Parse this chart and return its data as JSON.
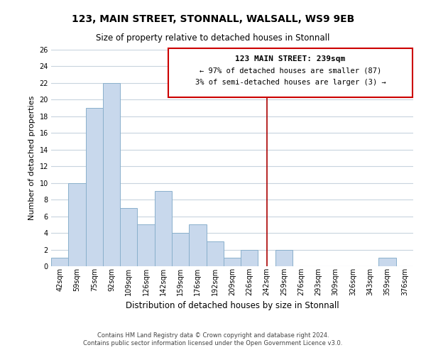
{
  "title": "123, MAIN STREET, STONNALL, WALSALL, WS9 9EB",
  "subtitle": "Size of property relative to detached houses in Stonnall",
  "xlabel": "Distribution of detached houses by size in Stonnall",
  "ylabel": "Number of detached properties",
  "bar_labels": [
    "42sqm",
    "59sqm",
    "75sqm",
    "92sqm",
    "109sqm",
    "126sqm",
    "142sqm",
    "159sqm",
    "176sqm",
    "192sqm",
    "209sqm",
    "226sqm",
    "242sqm",
    "259sqm",
    "276sqm",
    "293sqm",
    "309sqm",
    "326sqm",
    "343sqm",
    "359sqm",
    "376sqm"
  ],
  "bar_values": [
    1,
    10,
    19,
    22,
    7,
    5,
    9,
    4,
    5,
    3,
    1,
    2,
    0,
    2,
    0,
    0,
    0,
    0,
    0,
    1,
    0
  ],
  "bar_color": "#c8d8ec",
  "bar_edgecolor": "#8ab0cc",
  "vline_x_index": 12,
  "vline_color": "#aa0000",
  "annotation_title": "123 MAIN STREET: 239sqm",
  "annotation_line1": "← 97% of detached houses are smaller (87)",
  "annotation_line2": "3% of semi-detached houses are larger (3) →",
  "annotation_box_color": "#ffffff",
  "annotation_box_edgecolor": "#cc0000",
  "ylim": [
    0,
    26
  ],
  "yticks": [
    0,
    2,
    4,
    6,
    8,
    10,
    12,
    14,
    16,
    18,
    20,
    22,
    24,
    26
  ],
  "footer_line1": "Contains HM Land Registry data © Crown copyright and database right 2024.",
  "footer_line2": "Contains public sector information licensed under the Open Government Licence v3.0.",
  "background_color": "#ffffff",
  "grid_color": "#c8d4de",
  "title_fontsize": 10,
  "subtitle_fontsize": 8.5,
  "ylabel_fontsize": 8,
  "xlabel_fontsize": 8.5,
  "tick_fontsize": 7,
  "footer_fontsize": 6,
  "annot_title_fontsize": 8,
  "annot_body_fontsize": 7.5
}
